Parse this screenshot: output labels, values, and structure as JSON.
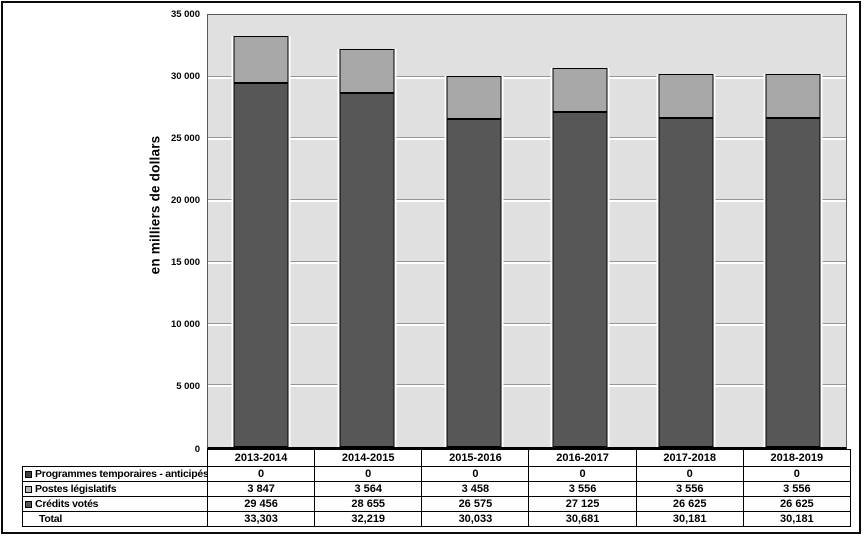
{
  "chart_data": {
    "type": "bar",
    "stacked": true,
    "title": "",
    "xlabel": "",
    "ylabel": "en milliers de dollars",
    "categories": [
      "2013-2014",
      "2014-2015",
      "2015-2016",
      "2016-2017",
      "2017-2018",
      "2018-2019"
    ],
    "series": [
      {
        "name": "Crédits votés",
        "color": "#575757",
        "values": [
          29456,
          28655,
          26575,
          27125,
          26625,
          26625
        ]
      },
      {
        "name": "Postes législatifs",
        "color": "#a8a8a8",
        "values": [
          3847,
          3564,
          3458,
          3556,
          3556,
          3556
        ]
      },
      {
        "name": "Programmes temporaires - anticipés",
        "color": "#404040",
        "values": [
          0,
          0,
          0,
          0,
          0,
          0
        ]
      }
    ],
    "totals": [
      33303,
      32219,
      30033,
      30681,
      30181,
      30181
    ],
    "ylim": [
      0,
      35000
    ],
    "yticks": [
      {
        "value": 0,
        "label": "0"
      },
      {
        "value": 5000,
        "label": "5 000"
      },
      {
        "value": 10000,
        "label": "10 000"
      },
      {
        "value": 15000,
        "label": "15 000"
      },
      {
        "value": 20000,
        "label": "20 000"
      },
      {
        "value": 25000,
        "label": "25 000"
      },
      {
        "value": 30000,
        "label": "30 000"
      },
      {
        "value": 35000,
        "label": "35 000"
      }
    ],
    "grid": "horizontal white gridlines on gray plot background",
    "legend_position": "table rows below chart"
  },
  "table": {
    "rows": [
      {
        "label": "Programmes temporaires - anticipés",
        "marker_color": "#404040",
        "values": [
          "0",
          "0",
          "0",
          "0",
          "0",
          "0"
        ]
      },
      {
        "label": "Postes législatifs",
        "marker_color": "#b8b8b8",
        "values": [
          "3 847",
          "3 564",
          "3 458",
          "3 556",
          "3 556",
          "3 556"
        ]
      },
      {
        "label": "Crédits votés",
        "marker_color": "#575757",
        "values": [
          "29 456",
          "28 655",
          "26 575",
          "27 125",
          "26 625",
          "26 625"
        ]
      },
      {
        "label": "Total",
        "marker_color": null,
        "values": [
          "33,303",
          "32,219",
          "30,033",
          "30,681",
          "30,181",
          "30,181"
        ]
      }
    ]
  },
  "colors": {
    "plot_background": "#e0e0e0",
    "gridline_white": "#ffffff",
    "gridline_shadow": "#969696",
    "bar_dark": "#575757",
    "bar_light": "#a8a8a8",
    "bar_border": "#000000",
    "frame_border": "#0a0a0a"
  }
}
